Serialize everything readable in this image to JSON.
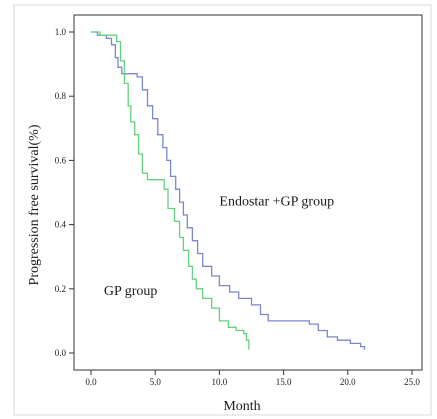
{
  "chart_data": {
    "type": "line",
    "xlabel": "Month",
    "ylabel": "Progression free survival(%)",
    "xlim": [
      0,
      25
    ],
    "ylim": [
      0,
      1
    ],
    "x_ticks": [
      "0.0",
      "5.0",
      "10.0",
      "15.0",
      "20.0",
      "25.0"
    ],
    "y_ticks": [
      "0.0",
      "0.2",
      "0.4",
      "0.6",
      "0.8",
      "1.0"
    ],
    "grid": false,
    "annotations": [
      {
        "text": "Endostar +GP group",
        "x": 10.0,
        "y": 0.46,
        "anchor": "start"
      },
      {
        "text": "GP group",
        "x": 1.0,
        "y": 0.18,
        "anchor": "start"
      }
    ],
    "series": [
      {
        "color": "#7b86cc",
        "steps": [
          [
            0.0,
            1.0
          ],
          [
            0.5,
            0.99
          ],
          [
            1.2,
            0.98
          ],
          [
            1.6,
            0.96
          ],
          [
            1.9,
            0.92
          ],
          [
            2.1,
            0.89
          ],
          [
            2.4,
            0.87
          ],
          [
            3.6,
            0.86
          ],
          [
            4.0,
            0.82
          ],
          [
            4.4,
            0.77
          ],
          [
            4.8,
            0.73
          ],
          [
            5.2,
            0.68
          ],
          [
            5.6,
            0.64
          ],
          [
            5.9,
            0.6
          ],
          [
            6.2,
            0.55
          ],
          [
            6.6,
            0.51
          ],
          [
            6.9,
            0.47
          ],
          [
            7.2,
            0.43
          ],
          [
            7.5,
            0.39
          ],
          [
            7.9,
            0.35
          ],
          [
            8.3,
            0.31
          ],
          [
            8.7,
            0.27
          ],
          [
            9.4,
            0.24
          ],
          [
            10.0,
            0.21
          ],
          [
            10.8,
            0.19
          ],
          [
            11.5,
            0.17
          ],
          [
            12.5,
            0.15
          ],
          [
            13.2,
            0.12
          ],
          [
            13.8,
            0.1
          ],
          [
            17.0,
            0.09
          ],
          [
            17.7,
            0.07
          ],
          [
            18.4,
            0.05
          ],
          [
            19.2,
            0.04
          ],
          [
            20.2,
            0.03
          ],
          [
            21.0,
            0.02
          ],
          [
            21.3,
            0.01
          ]
        ]
      },
      {
        "color": "#63d17d",
        "steps": [
          [
            0.0,
            1.0
          ],
          [
            0.7,
            0.99
          ],
          [
            2.0,
            0.97
          ],
          [
            2.3,
            0.91
          ],
          [
            2.6,
            0.84
          ],
          [
            2.9,
            0.77
          ],
          [
            3.1,
            0.72
          ],
          [
            3.4,
            0.68
          ],
          [
            3.7,
            0.62
          ],
          [
            4.0,
            0.56
          ],
          [
            4.4,
            0.54
          ],
          [
            5.7,
            0.51
          ],
          [
            6.0,
            0.45
          ],
          [
            6.5,
            0.41
          ],
          [
            6.9,
            0.36
          ],
          [
            7.2,
            0.32
          ],
          [
            7.6,
            0.27
          ],
          [
            7.9,
            0.23
          ],
          [
            8.2,
            0.2
          ],
          [
            8.7,
            0.17
          ],
          [
            9.4,
            0.14
          ],
          [
            10.0,
            0.1
          ],
          [
            10.7,
            0.08
          ],
          [
            11.3,
            0.07
          ],
          [
            11.9,
            0.06
          ],
          [
            12.1,
            0.04
          ],
          [
            12.3,
            0.01
          ]
        ]
      }
    ]
  }
}
